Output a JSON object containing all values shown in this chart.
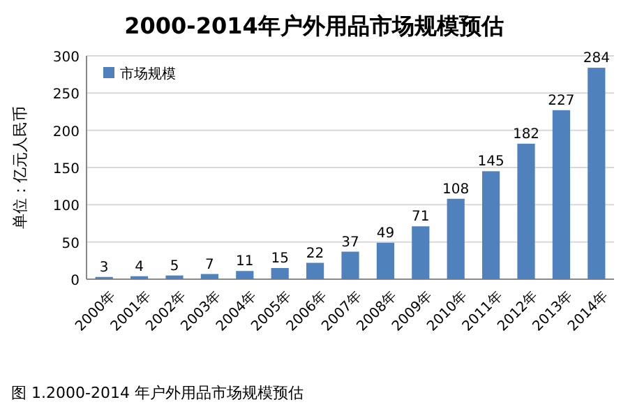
{
  "chart_data": {
    "type": "bar",
    "title": "2000-2014年户外用品市场规模预估",
    "ylabel": "单位：亿元人民币",
    "categories": [
      "2000年",
      "2001年",
      "2002年",
      "2003年",
      "2004年",
      "2005年",
      "2006年",
      "2007年",
      "2008年",
      "2009年",
      "2010年",
      "2011年",
      "2012年",
      "2013年",
      "2014年"
    ],
    "series": [
      {
        "name": "市场规模",
        "color": "#4f81bd",
        "values": [
          3,
          4,
          5,
          7,
          11,
          15,
          22,
          37,
          49,
          71,
          108,
          145,
          182,
          227,
          284
        ]
      }
    ],
    "ylim": [
      0,
      300
    ],
    "yticks": [
      0,
      50,
      100,
      150,
      200,
      250,
      300
    ],
    "grid": "y",
    "legend": "top left",
    "data_labels": true,
    "annotations": [
      "图 1.2000-2014 年户外用品市场规模预估"
    ]
  }
}
